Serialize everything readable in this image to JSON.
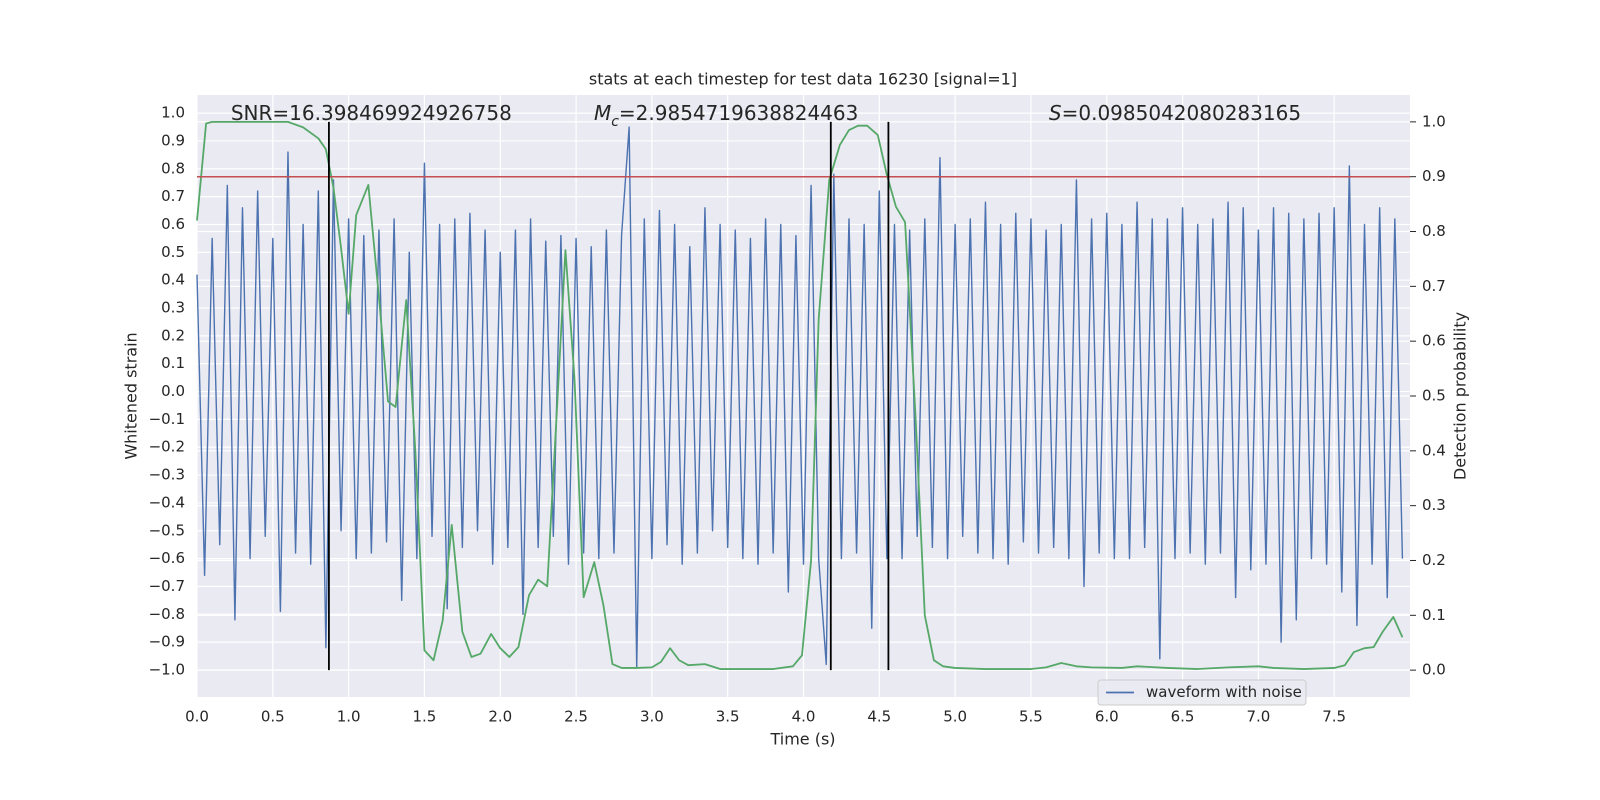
{
  "chart_data": {
    "type": "line",
    "title": "stats at each timestep for test data 16230 [signal=1]",
    "xlabel": "Time (s)",
    "ylabel": "Whitened strain",
    "y2label": "Detection probability",
    "xlim": [
      0,
      8
    ],
    "ylim": [
      -1.097,
      1.065
    ],
    "y2lim": [
      -0.049,
      1.049
    ],
    "xticks": [
      {
        "value": 0,
        "label": "0.0"
      },
      0.5,
      {
        "value": 1,
        "label": "1.0"
      },
      1.5,
      {
        "value": 2,
        "label": "2.0"
      },
      2.5,
      {
        "value": 3,
        "label": "3.0"
      },
      3.5,
      {
        "value": 4,
        "label": "4.0"
      },
      4.5,
      {
        "value": 5,
        "label": "5.0"
      },
      5.5,
      {
        "value": 6,
        "label": "6.0"
      },
      6.5,
      {
        "value": 7,
        "label": "7.0"
      },
      7.5
    ],
    "yticks": [
      {
        "value": -1,
        "label": "−1.0"
      },
      {
        "value": -0.9,
        "label": "−0.9"
      },
      {
        "value": -0.8,
        "label": "−0.8"
      },
      {
        "value": -0.7,
        "label": "−0.7"
      },
      {
        "value": -0.6,
        "label": "−0.6"
      },
      {
        "value": -0.5,
        "label": "−0.5"
      },
      {
        "value": -0.4,
        "label": "−0.4"
      },
      {
        "value": -0.3,
        "label": "−0.3"
      },
      {
        "value": -0.2,
        "label": "−0.2"
      },
      {
        "value": -0.1,
        "label": "−0.1"
      },
      {
        "value": 0,
        "label": "0.0"
      },
      0.1,
      0.2,
      0.3,
      0.4,
      0.5,
      0.6,
      0.7,
      0.8,
      0.9,
      {
        "value": 1,
        "label": "1.0"
      }
    ],
    "y2ticks": [
      {
        "value": 0,
        "label": "0.0"
      },
      0.1,
      0.2,
      0.3,
      0.4,
      0.5,
      0.6,
      0.7,
      0.8,
      0.9,
      {
        "value": 1,
        "label": "1.0"
      }
    ],
    "grid": true,
    "legend": "lower right",
    "series": [
      {
        "name": "waveform with noise",
        "color": "#4c72b0",
        "axis": "y",
        "x": [
          0,
          0.05,
          0.1,
          0.15,
          0.2,
          0.25,
          0.3,
          0.35,
          0.4,
          0.45,
          0.5,
          0.55,
          0.6,
          0.65,
          0.7,
          0.75,
          0.8,
          0.85,
          0.9,
          0.95,
          1,
          1.05,
          1.1,
          1.15,
          1.2,
          1.25,
          1.3,
          1.35,
          1.4,
          1.45,
          1.5,
          1.55,
          1.6,
          1.65,
          1.7,
          1.75,
          1.8,
          1.85,
          1.9,
          1.95,
          2,
          2.05,
          2.1,
          2.15,
          2.2,
          2.25,
          2.3,
          2.35,
          2.4,
          2.45,
          2.5,
          2.55,
          2.6,
          2.65,
          2.7,
          2.75,
          2.8,
          2.85,
          2.9,
          2.95,
          3,
          3.05,
          3.1,
          3.15,
          3.2,
          3.25,
          3.3,
          3.35,
          3.4,
          3.45,
          3.5,
          3.55,
          3.6,
          3.65,
          3.7,
          3.75,
          3.8,
          3.85,
          3.9,
          3.95,
          4,
          4.05,
          4.1,
          4.15,
          4.2,
          4.25,
          4.3,
          4.35,
          4.4,
          4.45,
          4.5,
          4.55,
          4.6,
          4.65,
          4.7,
          4.75,
          4.8,
          4.85,
          4.9,
          4.95,
          5,
          5.05,
          5.1,
          5.15,
          5.2,
          5.25,
          5.3,
          5.35,
          5.4,
          5.45,
          5.5,
          5.55,
          5.6,
          5.65,
          5.7,
          5.75,
          5.8,
          5.85,
          5.9,
          5.95,
          6,
          6.05,
          6.1,
          6.15,
          6.2,
          6.25,
          6.3,
          6.35,
          6.4,
          6.45,
          6.5,
          6.55,
          6.6,
          6.65,
          6.7,
          6.75,
          6.8,
          6.85,
          6.9,
          6.95,
          7,
          7.05,
          7.1,
          7.15,
          7.2,
          7.25,
          7.3,
          7.35,
          7.4,
          7.45,
          7.5,
          7.55,
          7.6,
          7.65,
          7.7,
          7.75,
          7.8,
          7.85,
          7.9,
          7.95
        ],
        "values": [
          0.42,
          -0.66,
          0.55,
          -0.55,
          0.74,
          -0.82,
          0.66,
          -0.6,
          0.72,
          -0.52,
          0.55,
          -0.79,
          0.86,
          -0.58,
          0.6,
          -0.62,
          0.72,
          -0.92,
          0.76,
          -0.5,
          0.62,
          -0.6,
          0.56,
          -0.58,
          0.58,
          -0.54,
          0.62,
          -0.75,
          0.5,
          -0.6,
          0.82,
          -0.52,
          0.6,
          -0.78,
          0.62,
          -0.56,
          0.64,
          -0.5,
          0.58,
          -0.62,
          0.5,
          -0.56,
          0.58,
          -0.8,
          0.62,
          -0.56,
          0.54,
          -0.52,
          0.56,
          -0.62,
          0.55,
          -0.58,
          0.52,
          -0.6,
          0.58,
          -0.58,
          0.56,
          0.95,
          -0.99,
          0.62,
          -0.6,
          0.65,
          -0.55,
          0.6,
          -0.62,
          0.52,
          -0.58,
          0.66,
          -0.5,
          0.6,
          -0.56,
          0.58,
          -0.6,
          0.55,
          -0.62,
          0.62,
          -0.58,
          0.6,
          -0.72,
          0.56,
          -0.62,
          0.74,
          -0.6,
          -0.98,
          0.78,
          -0.6,
          0.62,
          -0.58,
          0.6,
          -0.85,
          0.72,
          -0.6,
          0.6,
          -0.6,
          0.58,
          -0.52,
          0.62,
          -0.56,
          0.84,
          -0.6,
          0.6,
          -0.52,
          0.62,
          -0.58,
          0.68,
          -0.6,
          0.6,
          -0.62,
          0.64,
          -0.54,
          0.62,
          -0.58,
          0.58,
          -0.56,
          0.6,
          -0.6,
          0.76,
          -0.7,
          0.62,
          -0.58,
          0.64,
          -0.6,
          0.6,
          -0.6,
          0.68,
          -0.56,
          0.62,
          -0.96,
          0.62,
          -0.6,
          0.66,
          -0.58,
          0.6,
          -0.62,
          0.62,
          -0.58,
          0.68,
          -0.74,
          0.66,
          -0.64,
          0.58,
          -0.62,
          0.66,
          -0.9,
          0.64,
          -0.82,
          0.62,
          -0.6,
          0.64,
          -0.62,
          0.66,
          -0.72,
          0.81,
          -0.84,
          0.6,
          -0.62,
          0.66,
          -0.74,
          0.62,
          -0.6
        ]
      },
      {
        "color": "#55a868",
        "axis": "y2",
        "x": [
          0,
          0.06,
          0.1,
          0.6,
          0.7,
          0.8,
          0.85,
          0.9,
          0.95,
          1,
          1.05,
          1.13,
          1.2,
          1.26,
          1.31,
          1.38,
          1.44,
          1.5,
          1.56,
          1.62,
          1.68,
          1.75,
          1.81,
          1.87,
          1.94,
          2,
          2.06,
          2.12,
          2.19,
          2.25,
          2.31,
          2.37,
          2.43,
          2.49,
          2.55,
          2.62,
          2.68,
          2.74,
          2.8,
          2.9,
          3,
          3.06,
          3.12,
          3.18,
          3.24,
          3.35,
          3.45,
          3.6,
          3.8,
          3.93,
          3.99,
          4.05,
          4.1,
          4.17,
          4.24,
          4.3,
          4.36,
          4.42,
          4.49,
          4.55,
          4.61,
          4.67,
          4.74,
          4.8,
          4.86,
          4.92,
          5,
          5.2,
          5.5,
          5.6,
          5.7,
          5.8,
          5.9,
          6.1,
          6.2,
          6.4,
          6.6,
          6.8,
          7,
          7.1,
          7.3,
          7.5,
          7.57,
          7.63,
          7.7,
          7.76,
          7.82,
          7.89,
          7.95
        ],
        "values": [
          0.82,
          0.997,
          1,
          1,
          0.99,
          0.97,
          0.95,
          0.88,
          0.77,
          0.65,
          0.83,
          0.885,
          0.68,
          0.49,
          0.48,
          0.675,
          0.4,
          0.036,
          0.018,
          0.09,
          0.265,
          0.07,
          0.024,
          0.03,
          0.066,
          0.04,
          0.024,
          0.042,
          0.137,
          0.165,
          0.153,
          0.456,
          0.766,
          0.53,
          0.133,
          0.197,
          0.119,
          0.011,
          0.004,
          0.004,
          0.005,
          0.015,
          0.04,
          0.018,
          0.009,
          0.011,
          0.002,
          0.002,
          0.002,
          0.007,
          0.027,
          0.2,
          0.64,
          0.894,
          0.958,
          0.985,
          0.993,
          0.993,
          0.976,
          0.903,
          0.845,
          0.817,
          0.456,
          0.1,
          0.018,
          0.007,
          0.004,
          0.002,
          0.002,
          0.005,
          0.013,
          0.007,
          0.005,
          0.004,
          0.007,
          0.004,
          0.002,
          0.005,
          0.007,
          0.004,
          0.002,
          0.004,
          0.009,
          0.033,
          0.04,
          0.042,
          0.07,
          0.097,
          0.06
        ]
      }
    ],
    "hlines": [
      {
        "value": 0.9,
        "axis": "y2",
        "color": "#c44e52"
      }
    ],
    "vlines": {
      "values": [
        0.87,
        4.18,
        4.56
      ],
      "axis": "y2",
      "span": [
        0,
        1
      ],
      "color": "#000000"
    },
    "annotations": [
      {
        "text": "SNR=16.398469924926758",
        "x": 1.15
      },
      {
        "symbol": "M",
        "subscript": "c",
        "text": "=2.9854719638824463",
        "x": 3.49
      },
      {
        "symbol": "S",
        "text": "=0.0985042080283165",
        "x": 6.45
      }
    ]
  }
}
